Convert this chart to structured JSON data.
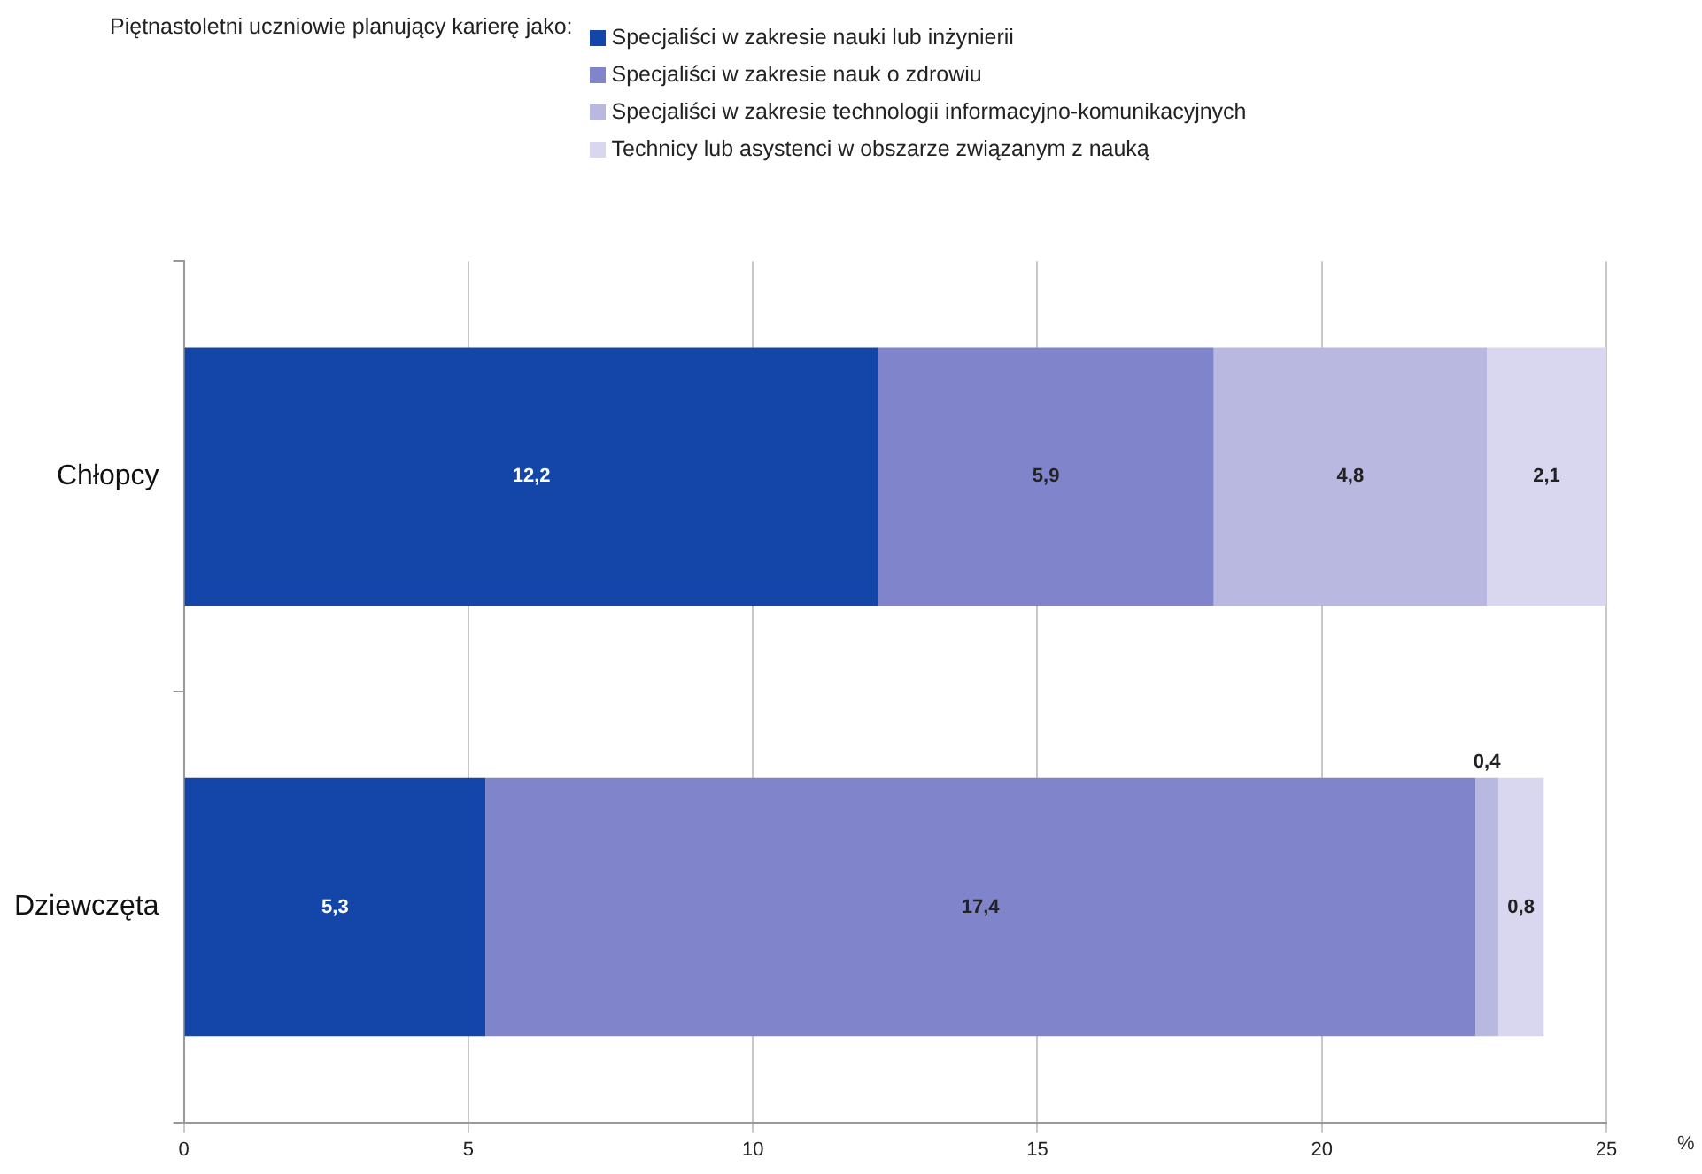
{
  "chart_data": {
    "type": "bar",
    "orientation": "horizontal",
    "stacked": true,
    "legend_title": "Piętnastoletni uczniowie planujący karierę jako:",
    "legend": "top",
    "categories": [
      "Chłopcy",
      "Dziewczęta"
    ],
    "series": [
      {
        "name": "Specjaliści w zakresie nauki lub inżynierii",
        "color": "#1346a8",
        "values": [
          12.2,
          5.3
        ],
        "value_labels": [
          "12,2",
          "5,3"
        ]
      },
      {
        "name": "Specjaliści w zakresie nauk o zdrowiu",
        "color": "#7f84cb",
        "values": [
          5.9,
          17.4
        ],
        "value_labels": [
          "5,9",
          "17,4"
        ]
      },
      {
        "name": "Specjaliści w zakresie technologii informacyjno-komunikacyjnych",
        "color": "#b8b8e0",
        "values": [
          4.8,
          0.4
        ],
        "value_labels": [
          "4,8",
          "0,4"
        ]
      },
      {
        "name": "Technicy lub asystenci w obszarze związanym z nauką",
        "color": "#d9d6ef",
        "values": [
          2.1,
          0.8
        ],
        "value_labels": [
          "2,1",
          "0,8"
        ]
      }
    ],
    "xlim": [
      0,
      25
    ],
    "xticks": [
      0,
      5,
      10,
      15,
      20,
      25
    ],
    "xlabel": "%",
    "grid": "x",
    "data_labels": true
  }
}
